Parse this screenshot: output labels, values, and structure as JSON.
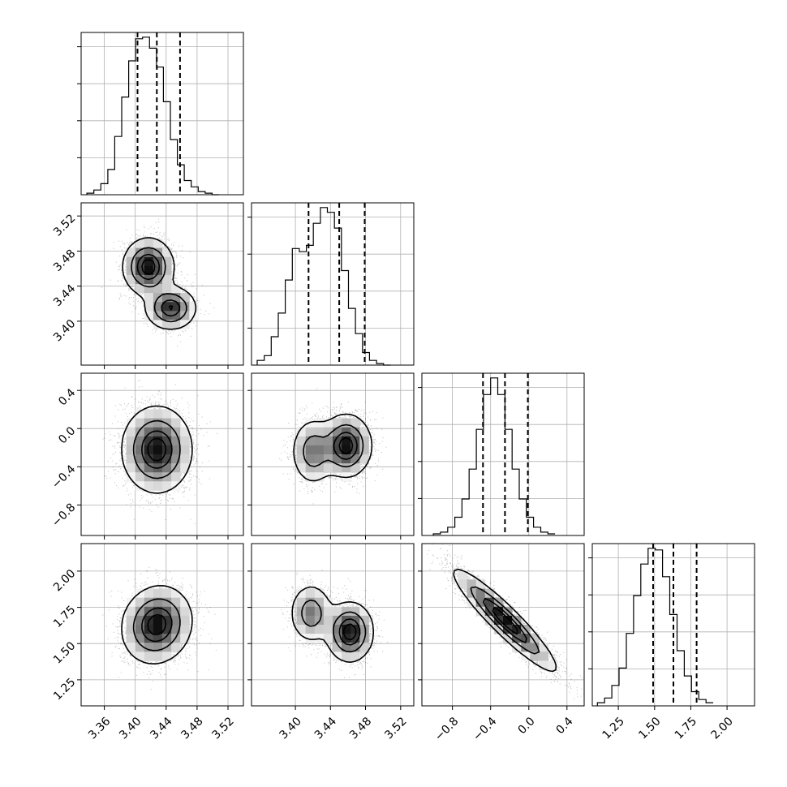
{
  "chart_data": {
    "type": "corner",
    "title": "",
    "n_params": 4,
    "grid": true,
    "colors": {
      "data": "#000000",
      "grid": "#b0b0b0",
      "background": "#ffffff"
    },
    "params": [
      {
        "label": "",
        "range": [
          3.33,
          3.54
        ],
        "ticks": [
          "3.36",
          "3.40",
          "3.44",
          "3.48",
          "3.52"
        ],
        "tick_values": [
          3.36,
          3.4,
          3.44,
          3.48,
          3.52
        ]
      },
      {
        "label": "",
        "range": [
          3.35,
          3.535
        ],
        "ticks": [
          "3.40",
          "3.44",
          "3.48",
          "3.52"
        ],
        "tick_values": [
          3.4,
          3.44,
          3.48,
          3.52
        ]
      },
      {
        "label": "",
        "range": [
          -1.12,
          0.58
        ],
        "ticks": [
          "-0.8",
          "-0.4",
          "0.0",
          "0.4"
        ],
        "tick_values": [
          -0.8,
          -0.4,
          0.0,
          0.4
        ]
      },
      {
        "label": "",
        "range": [
          1.07,
          2.19
        ],
        "ticks": [
          "1.25",
          "1.50",
          "1.75",
          "2.00"
        ],
        "tick_values": [
          1.25,
          1.5,
          1.75,
          2.0
        ]
      }
    ],
    "histograms": [
      {
        "param": 0,
        "bin_start": 3.3375,
        "bin_width": 0.009,
        "counts": [
          1,
          3,
          7,
          16,
          37,
          62,
          85,
          99,
          100,
          93,
          81,
          59,
          35,
          19,
          9,
          5,
          2,
          1,
          0
        ],
        "quantiles": [
          3.403,
          3.428,
          3.458
        ]
      },
      {
        "param": 1,
        "bin_start": 3.3565,
        "bin_width": 0.008,
        "counts": [
          3,
          6,
          18,
          33,
          54,
          74,
          72,
          76,
          90,
          100,
          97,
          87,
          60,
          36,
          20,
          8,
          3,
          1,
          0
        ],
        "quantiles": [
          3.415,
          3.45,
          3.479
        ]
      },
      {
        "param": 2,
        "bin_start": -1.0,
        "bin_width": 0.075,
        "counts": [
          1,
          2,
          5,
          11,
          22,
          40,
          64,
          85,
          95,
          85,
          64,
          40,
          22,
          11,
          5,
          2,
          1
        ],
        "quantiles": [
          -0.48,
          -0.25,
          -0.01
        ]
      },
      {
        "param": 3,
        "bin_start": 1.105,
        "bin_width": 0.05,
        "counts": [
          2,
          5,
          13,
          24,
          46,
          70,
          90,
          100,
          99,
          82,
          58,
          35,
          19,
          9,
          4,
          2
        ],
        "quantiles": [
          1.49,
          1.63,
          1.79
        ]
      }
    ],
    "joint": [
      {
        "row": 1,
        "col": 0,
        "components": [
          {
            "mx": 3.417,
            "my": 3.462,
            "sx": 0.016,
            "sy": 0.016,
            "rho": 0.0,
            "w": 0.6
          },
          {
            "mx": 3.446,
            "my": 3.415,
            "sx": 0.016,
            "sy": 0.012,
            "rho": 0.0,
            "w": 0.4
          }
        ]
      },
      {
        "row": 2,
        "col": 0,
        "components": [
          {
            "mx": 3.428,
            "my": -0.22,
            "sx": 0.022,
            "sy": 0.22,
            "rho": 0.0,
            "w": 1.0
          }
        ]
      },
      {
        "row": 2,
        "col": 1,
        "components": [
          {
            "mx": 3.42,
            "my": -0.24,
            "sx": 0.012,
            "sy": 0.17,
            "rho": 0.0,
            "w": 0.35
          },
          {
            "mx": 3.458,
            "my": -0.18,
            "sx": 0.014,
            "sy": 0.16,
            "rho": 0.0,
            "w": 0.65
          }
        ]
      },
      {
        "row": 3,
        "col": 0,
        "components": [
          {
            "mx": 3.428,
            "my": 1.63,
            "sx": 0.022,
            "sy": 0.13,
            "rho": 0.1,
            "w": 1.0
          }
        ]
      },
      {
        "row": 3,
        "col": 1,
        "components": [
          {
            "mx": 3.418,
            "my": 1.71,
            "sx": 0.012,
            "sy": 0.1,
            "rho": 0.0,
            "w": 0.35
          },
          {
            "mx": 3.462,
            "my": 1.58,
            "sx": 0.013,
            "sy": 0.1,
            "rho": 0.0,
            "w": 0.65
          }
        ]
      },
      {
        "row": 3,
        "col": 2,
        "components": [
          {
            "mx": -0.25,
            "my": 1.66,
            "sx": 0.26,
            "sy": 0.17,
            "rho": -0.93,
            "w": 1.0
          }
        ]
      }
    ],
    "contour_levels": [
      0.118,
      0.393,
      0.675,
      0.865
    ]
  }
}
